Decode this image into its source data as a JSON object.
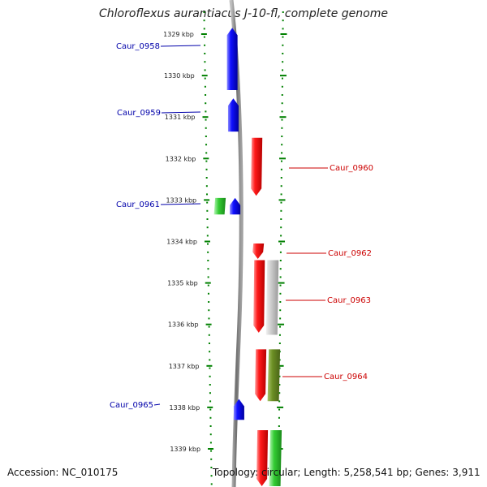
{
  "title": "Chloroflexus aurantiacus J-10-fl, complete genome",
  "footer": {
    "accession": "Accession: NC_010175",
    "topology": "Topology: circular; Length: 5,258,541 bp; Genes: 3,911"
  },
  "colors": {
    "forward": "#ff0000",
    "reverse": "#0000ee",
    "rna": "#33cc33",
    "olive": "#6b8e23",
    "grey": "#c8c8c8",
    "tick": "#008000",
    "backbone": "#808080"
  },
  "scale": {
    "ticks": [
      {
        "kbp": 1329,
        "label": "1329 kbp"
      },
      {
        "kbp": 1330,
        "label": "1330 kbp"
      },
      {
        "kbp": 1331,
        "label": "1331 kbp"
      },
      {
        "kbp": 1332,
        "label": "1332 kbp"
      },
      {
        "kbp": 1333,
        "label": "1333 kbp"
      },
      {
        "kbp": 1334,
        "label": "1334 kbp"
      },
      {
        "kbp": 1335,
        "label": "1335 kbp"
      },
      {
        "kbp": 1336,
        "label": "1336 kbp"
      },
      {
        "kbp": 1337,
        "label": "1337 kbp"
      },
      {
        "kbp": 1338,
        "label": "1338 kbp"
      },
      {
        "kbp": 1339,
        "label": "1339 kbp"
      }
    ]
  },
  "genes": [
    {
      "label": "Caur_0958",
      "start": 1328.85,
      "end": 1330.35,
      "strand": "-",
      "track": 1,
      "color": "reverse",
      "labelled": true,
      "label_side": "left"
    },
    {
      "label": "Caur_0959",
      "start": 1330.55,
      "end": 1331.35,
      "strand": "-",
      "track": 1,
      "color": "reverse",
      "labelled": true,
      "label_side": "left"
    },
    {
      "label": "Caur_0960",
      "start": 1331.5,
      "end": 1332.9,
      "strand": "+",
      "track": 2,
      "color": "forward",
      "labelled": true,
      "label_side": "right"
    },
    {
      "label": "Caur_0961",
      "start": 1332.95,
      "end": 1333.35,
      "strand": "-",
      "track": 1,
      "color": "reverse",
      "labelled": true,
      "label_side": "left"
    },
    {
      "label": "",
      "start": 1332.95,
      "end": 1333.35,
      "strand": "-",
      "track": 0,
      "color": "rna",
      "labelled": false
    },
    {
      "label": "Caur_0962",
      "start": 1334.05,
      "end": 1334.42,
      "strand": "+",
      "track": 2,
      "color": "forward",
      "labelled": true,
      "label_side": "right"
    },
    {
      "label": "",
      "start": 1334.45,
      "end": 1336.2,
      "strand": "+",
      "track": 2,
      "color": "forward",
      "labelled": false
    },
    {
      "label": "Caur_0963",
      "start": 1334.45,
      "end": 1336.25,
      "strand": "+",
      "track": 3,
      "color": "grey",
      "labelled": true,
      "label_side": "right"
    },
    {
      "label": "",
      "start": 1336.6,
      "end": 1337.85,
      "strand": "+",
      "track": 2,
      "color": "forward",
      "labelled": false
    },
    {
      "label": "Caur_0964",
      "start": 1336.6,
      "end": 1337.85,
      "strand": "+",
      "track": 3,
      "color": "olive",
      "labelled": true,
      "label_side": "right"
    },
    {
      "label": "Caur_0965",
      "start": 1337.8,
      "end": 1338.3,
      "strand": "-",
      "track": 1,
      "color": "reverse",
      "labelled": true,
      "label_side": "left"
    },
    {
      "label": "",
      "start": 1338.55,
      "end": 1339.9,
      "strand": "+",
      "track": 2,
      "color": "forward",
      "labelled": false
    },
    {
      "label": "",
      "start": 1338.55,
      "end": 1339.9,
      "strand": "+",
      "track": 3,
      "color": "rna",
      "labelled": false
    }
  ]
}
